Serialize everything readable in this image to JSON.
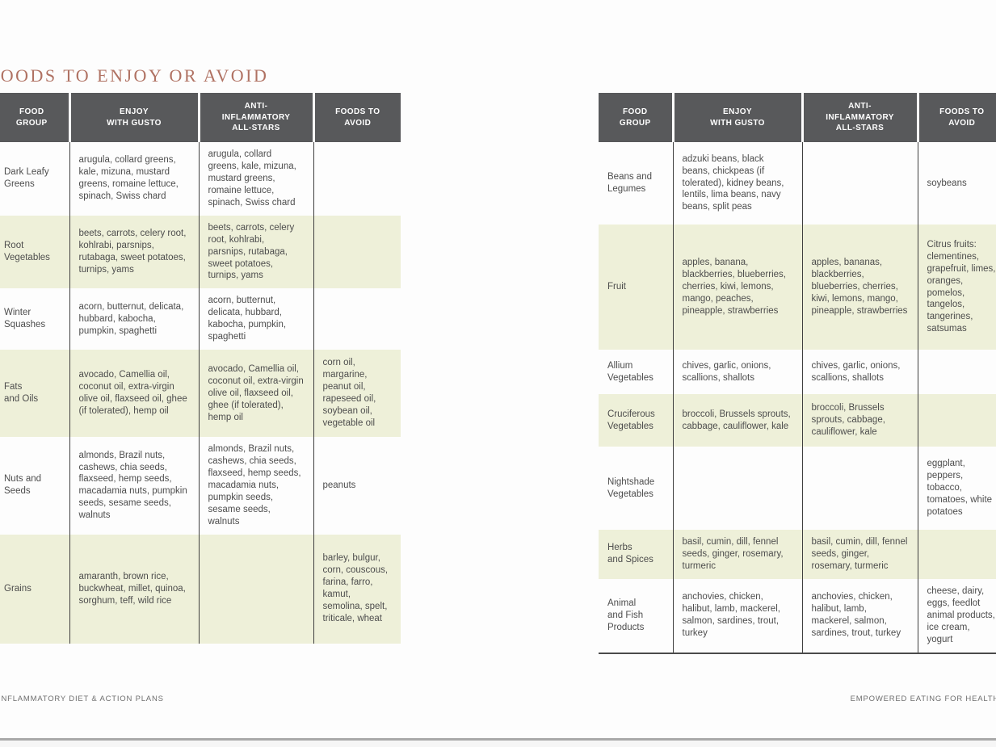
{
  "page": {
    "title": "FOODS TO ENJOY OR AVOID",
    "footer_left": "INFLAMMATORY DIET & ACTION PLANS",
    "footer_right": "EMPOWERED EATING FOR HEALTH"
  },
  "colors": {
    "header_bg": "#58595b",
    "header_text": "#ffffff",
    "row_shaded": "#eef0d9",
    "title": "#b07263",
    "body_text": "#4d4d4d"
  },
  "columns": [
    "FOOD\nGROUP",
    "ENJOY\nWITH GUSTO",
    "ANTI-\nINFLAMMATORY\nALL-STARS",
    "FOODS TO\nAVOID"
  ],
  "tables": {
    "left": {
      "rows": [
        {
          "group": "Dark Leafy\nGreens",
          "enjoy": "arugula, collard greens, kale, mizuna, mustard greens, romaine lettuce, spinach, Swiss chard",
          "allstars": "arugula, collard greens, kale, mizuna, mustard greens, romaine lettuce, spinach, Swiss chard",
          "avoid": "",
          "shaded": false
        },
        {
          "group": "Root\nVegetables",
          "enjoy": "beets, carrots, celery root, kohlrabi, parsnips, rutabaga, sweet potatoes, turnips, yams",
          "allstars": "beets, carrots, celery root, kohlrabi, parsnips, rutabaga, sweet potatoes, turnips, yams",
          "avoid": "",
          "shaded": true
        },
        {
          "group": "Winter\nSquashes",
          "enjoy": "acorn, butternut, delicata, hubbard, kabocha, pumpkin, spaghetti",
          "allstars": "acorn, butternut, delicata, hubbard, kabocha, pumpkin, spaghetti",
          "avoid": "",
          "shaded": false
        },
        {
          "group": "Fats\nand Oils",
          "enjoy": "avocado, Camellia oil, coconut oil, extra-virgin olive oil, flaxseed oil, ghee (if tolerated), hemp oil",
          "allstars": "avocado, Camellia oil, coconut oil, extra-virgin olive oil, flaxseed oil, ghee (if tolerated), hemp oil",
          "avoid": "corn oil, margarine, peanut oil, rapeseed oil, soybean oil, vegetable oil",
          "shaded": true
        },
        {
          "group": "Nuts and\nSeeds",
          "enjoy": "almonds, Brazil nuts, cashews, chia seeds, flaxseed, hemp seeds, macadamia nuts, pumpkin seeds, sesame seeds, walnuts",
          "allstars": "almonds, Brazil nuts, cashews, chia seeds, flaxseed, hemp seeds, macadamia nuts, pumpkin seeds, sesame seeds, walnuts",
          "avoid": "peanuts",
          "shaded": false
        },
        {
          "group": "Grains",
          "enjoy": "amaranth, brown rice, buckwheat, millet, quinoa, sorghum, teff, wild rice",
          "allstars": "",
          "avoid": "barley, bulgur, corn, couscous, farina, farro, kamut, semolina, spelt, triticale, wheat",
          "shaded": true
        }
      ]
    },
    "right": {
      "rows": [
        {
          "group": "Beans and\nLegumes",
          "enjoy": "adzuki beans, black beans, chickpeas (if tolerated), kidney beans, lentils, lima beans, navy beans, split peas",
          "allstars": "",
          "avoid": "soybeans",
          "shaded": false
        },
        {
          "group": "Fruit",
          "enjoy": "apples, banana, blackberries, blueberries, cherries, kiwi, lemons, mango, peaches, pineapple, strawberries",
          "allstars": "apples, bananas, blackberries, blueberries, cherries, kiwi, lemons, mango, pineapple, strawberries",
          "avoid": "Citrus fruits: clementines, grapefruit, limes, oranges, pomelos, tangelos, tangerines, satsumas",
          "shaded": true
        },
        {
          "group": "Allium\nVegetables",
          "enjoy": "chives, garlic, onions, scallions, shallots",
          "allstars": "chives, garlic, onions, scallions, shallots",
          "avoid": "",
          "shaded": false
        },
        {
          "group": "Cruciferous\nVegetables",
          "enjoy": "broccoli, Brussels sprouts, cabbage, cauliflower, kale",
          "allstars": "broccoli, Brussels sprouts, cabbage, cauliflower, kale",
          "avoid": "",
          "shaded": true
        },
        {
          "group": "Nightshade\nVegetables",
          "enjoy": "",
          "allstars": "",
          "avoid": "eggplant, peppers, tobacco, tomatoes, white potatoes",
          "shaded": false
        },
        {
          "group": "Herbs\nand Spices",
          "enjoy": "basil, cumin, dill, fennel seeds, ginger, rosemary, turmeric",
          "allstars": "basil, cumin, dill, fennel seeds, ginger, rosemary, turmeric",
          "avoid": "",
          "shaded": true
        },
        {
          "group": "Animal\nand Fish\nProducts",
          "enjoy": "anchovies, chicken, halibut, lamb, mackerel, salmon, sardines, trout, turkey",
          "allstars": "anchovies, chicken, halibut, lamb, mackerel, salmon, sardines, trout, turkey",
          "avoid": "cheese, dairy, eggs, feedlot animal products, ice cream, yogurt",
          "shaded": false
        }
      ]
    }
  }
}
